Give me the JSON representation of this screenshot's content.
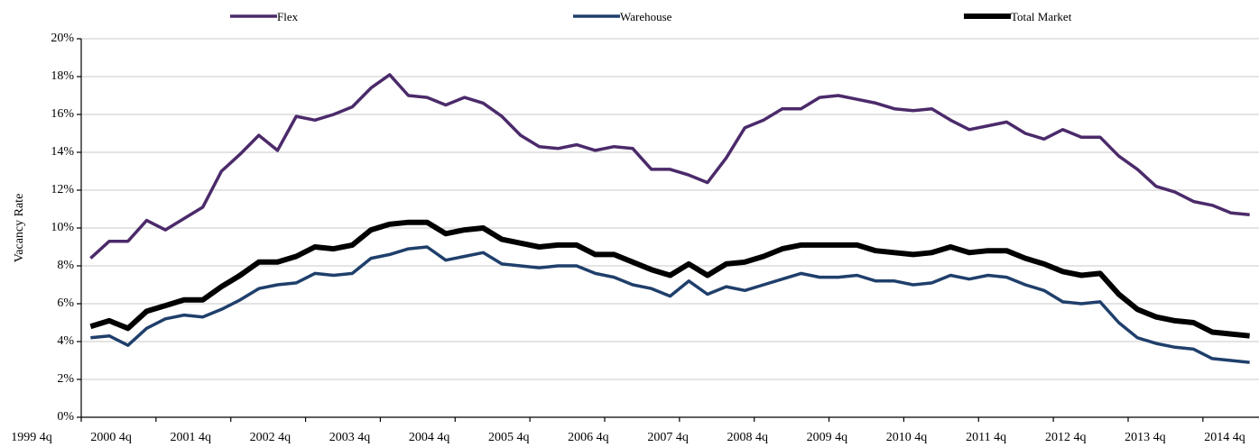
{
  "chart_data": {
    "type": "line",
    "y_label": "Vacancy Rate",
    "categories": [
      "1999 4q",
      null,
      null,
      null,
      "2000 4q",
      null,
      null,
      null,
      "2001 4q",
      null,
      null,
      null,
      "2002 4q",
      null,
      null,
      null,
      "2003 4q",
      null,
      null,
      null,
      "2004 4q",
      null,
      null,
      null,
      "2005 4q",
      null,
      null,
      null,
      "2006 4q",
      null,
      null,
      null,
      "2007 4q",
      null,
      null,
      null,
      "2008 4q",
      null,
      null,
      null,
      "2009 4q",
      null,
      null,
      null,
      "2010 4q",
      null,
      null,
      null,
      "2011 4q",
      null,
      null,
      null,
      "2012 4q",
      null,
      null,
      null,
      "2013 4q",
      null,
      null,
      null,
      "2014 4q",
      null,
      null
    ],
    "series": [
      {
        "name": "Flex",
        "color": "#4b2a6a",
        "width": 3.5,
        "values": [
          8.4,
          9.3,
          9.3,
          10.4,
          9.9,
          10.5,
          11.1,
          13.0,
          13.9,
          14.9,
          14.1,
          15.9,
          15.7,
          16.0,
          16.4,
          17.4,
          18.1,
          17.0,
          16.9,
          16.5,
          16.9,
          16.6,
          15.9,
          14.9,
          14.3,
          14.2,
          14.4,
          14.1,
          14.3,
          14.2,
          13.1,
          13.1,
          12.8,
          12.4,
          13.7,
          15.3,
          15.7,
          16.3,
          16.3,
          16.9,
          17.0,
          16.8,
          16.6,
          16.3,
          16.2,
          16.3,
          15.7,
          15.2,
          15.4,
          15.6,
          15.0,
          14.7,
          15.2,
          14.8,
          14.8,
          13.8,
          13.1,
          12.2,
          11.9,
          11.4,
          11.2,
          10.8,
          10.7
        ]
      },
      {
        "name": "Warehouse",
        "color": "#1f3f6b",
        "width": 3.5,
        "values": [
          4.2,
          4.3,
          3.8,
          4.7,
          5.2,
          5.4,
          5.3,
          5.7,
          6.2,
          6.8,
          7.0,
          7.1,
          7.6,
          7.5,
          7.6,
          8.4,
          8.6,
          8.9,
          9.0,
          8.3,
          8.5,
          8.7,
          8.1,
          8.0,
          7.9,
          8.0,
          8.0,
          7.6,
          7.4,
          7.0,
          6.8,
          6.4,
          7.2,
          6.5,
          6.9,
          6.7,
          7.0,
          7.3,
          7.6,
          7.4,
          7.4,
          7.5,
          7.2,
          7.2,
          7.0,
          7.1,
          7.5,
          7.3,
          7.5,
          7.4,
          7.0,
          6.7,
          6.1,
          6.0,
          6.1,
          5.0,
          4.2,
          3.9,
          3.7,
          3.6,
          3.1,
          3.0,
          2.9
        ]
      },
      {
        "name": "Total Market",
        "color": "#000000",
        "width": 6,
        "values": [
          4.8,
          5.1,
          4.7,
          5.6,
          5.9,
          6.2,
          6.2,
          6.9,
          7.5,
          8.2,
          8.2,
          8.5,
          9.0,
          8.9,
          9.1,
          9.9,
          10.2,
          10.3,
          10.3,
          9.7,
          9.9,
          10.0,
          9.4,
          9.2,
          9.0,
          9.1,
          9.1,
          8.6,
          8.6,
          8.2,
          7.8,
          7.5,
          8.1,
          7.5,
          8.1,
          8.2,
          8.5,
          8.9,
          9.1,
          9.1,
          9.1,
          9.1,
          8.8,
          8.7,
          8.6,
          8.7,
          9.0,
          8.7,
          8.8,
          8.8,
          8.4,
          8.1,
          7.7,
          7.5,
          7.6,
          6.5,
          5.7,
          5.3,
          5.1,
          5.0,
          4.5,
          4.4,
          4.3
        ]
      }
    ],
    "ylim": [
      0,
      20
    ],
    "yticks": [
      {
        "value": 0,
        "label": "0%"
      },
      {
        "value": 2,
        "label": "2%"
      },
      {
        "value": 4,
        "label": "4%"
      },
      {
        "value": 6,
        "label": "6%"
      },
      {
        "value": 8,
        "label": "8%"
      },
      {
        "value": 10,
        "label": "10%"
      },
      {
        "value": 12,
        "label": "12%"
      },
      {
        "value": 14,
        "label": "14%"
      },
      {
        "value": 16,
        "label": "16%"
      },
      {
        "value": 18,
        "label": "18%"
      },
      {
        "value": 20,
        "label": "20%"
      }
    ],
    "grid": true,
    "legend": "top"
  }
}
